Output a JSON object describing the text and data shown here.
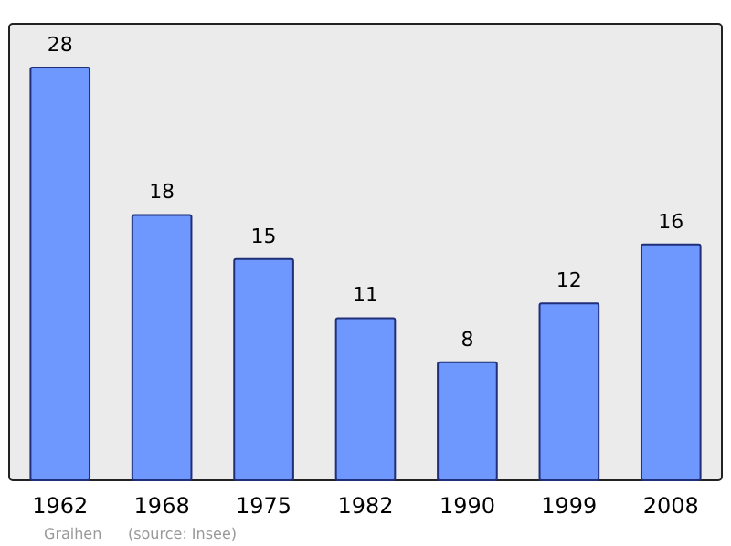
{
  "chart_data": {
    "type": "bar",
    "categories": [
      "1962",
      "1968",
      "1975",
      "1982",
      "1990",
      "1999",
      "2008"
    ],
    "values": [
      28,
      18,
      15,
      11,
      8,
      12,
      16
    ],
    "color": "#6f98ff",
    "data_labels": true,
    "annotations": [
      "Graihen",
      "(source: Insee)"
    ]
  }
}
